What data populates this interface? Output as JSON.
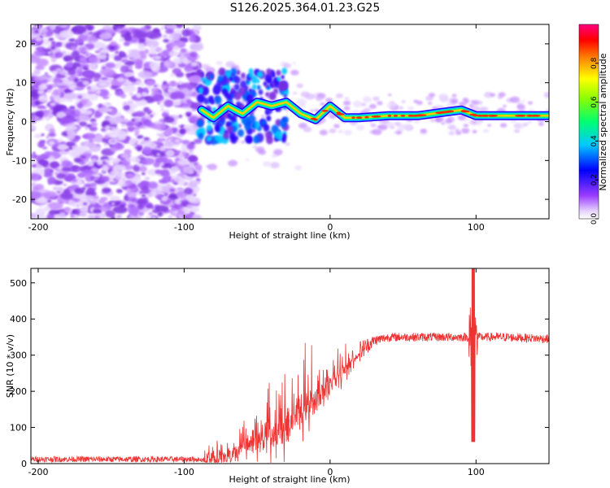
{
  "figure_title": "S126.2025.364.01.23.G25",
  "chart_data": [
    {
      "type": "heatmap",
      "xlabel": "Height of straight line (km)",
      "ylabel": "Frequency (Hz)",
      "xlim": [
        -205,
        150
      ],
      "ylim": [
        -25,
        25
      ],
      "xticks": [
        -200,
        -100,
        0,
        100
      ],
      "yticks": [
        -20,
        -10,
        0,
        10,
        20
      ],
      "colorbar": {
        "label": "Normalized spectral amplitude",
        "range": [
          0,
          1
        ],
        "ticks": [
          0.0,
          0.2,
          0.4,
          0.6,
          0.8
        ]
      },
      "ridge": {
        "x": [
          -88,
          -80,
          -70,
          -60,
          -50,
          -40,
          -30,
          -20,
          -10,
          0,
          10,
          20,
          40,
          60,
          80,
          90,
          100,
          120,
          150
        ],
        "freq": [
          3,
          1,
          4,
          2,
          5,
          4,
          5,
          2,
          0.5,
          4,
          1,
          1,
          1.5,
          1.5,
          2.5,
          3,
          1.5,
          1.5,
          1.5
        ]
      },
      "noise_region": [
        -205,
        -90
      ]
    },
    {
      "type": "line",
      "xlabel": "Height of straight line (km)",
      "ylabel": "SNR (10 * v/v)",
      "xlim": [
        -205,
        150
      ],
      "ylim": [
        0,
        540
      ],
      "xticks": [
        -200,
        -100,
        0,
        100
      ],
      "yticks": [
        0,
        100,
        200,
        300,
        400,
        500
      ],
      "color": "#ee3333",
      "envelope": {
        "x": [
          -205,
          -90,
          -80,
          -70,
          -60,
          -50,
          -40,
          -30,
          -20,
          -10,
          0,
          10,
          20,
          30,
          40,
          60,
          80,
          100,
          120,
          150
        ],
        "baseline": [
          12,
          12,
          20,
          40,
          60,
          80,
          100,
          130,
          160,
          200,
          240,
          270,
          310,
          340,
          350,
          350,
          350,
          350,
          350,
          345
        ],
        "noise_amplitude": [
          8,
          8,
          90,
          110,
          110,
          130,
          160,
          180,
          170,
          150,
          110,
          80,
          30,
          15,
          12,
          12,
          12,
          12,
          12,
          12
        ]
      },
      "spike": {
        "x": 98,
        "max": 540,
        "min": 60
      }
    }
  ]
}
